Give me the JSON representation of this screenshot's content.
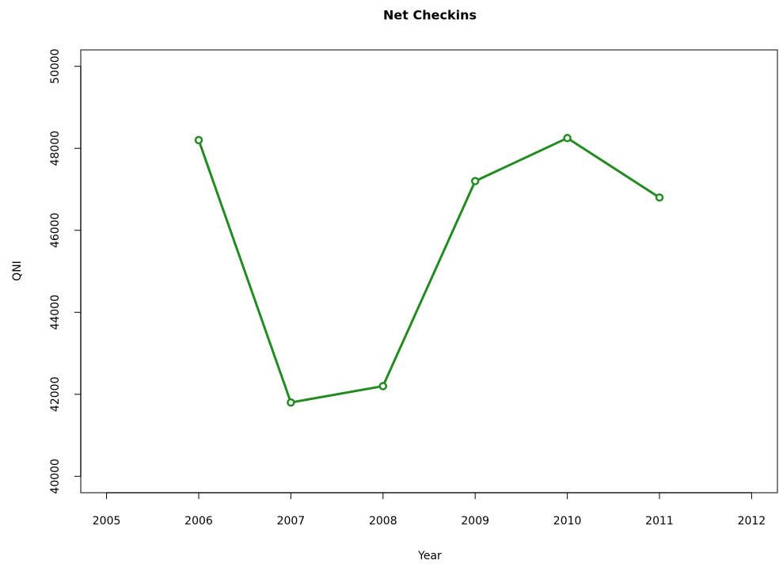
{
  "chart_data": {
    "type": "line",
    "title": "Net Checkins",
    "x_label": "Year",
    "y_label": "QNI",
    "x": [
      2006,
      2007,
      2008,
      2009,
      2010,
      2011
    ],
    "series": [
      {
        "name": "QNI",
        "color": "#228B22",
        "values": [
          48200,
          41800,
          42200,
          47200,
          48250,
          46800
        ]
      }
    ],
    "xlim": [
      2004.72,
      2012.28
    ],
    "xticks": [
      2005,
      2006,
      2007,
      2008,
      2009,
      2010,
      2011,
      2012
    ],
    "ylim": [
      39600,
      50400
    ],
    "yticks": [
      40000,
      42000,
      44000,
      46000,
      48000,
      50000
    ],
    "grid": false
  }
}
